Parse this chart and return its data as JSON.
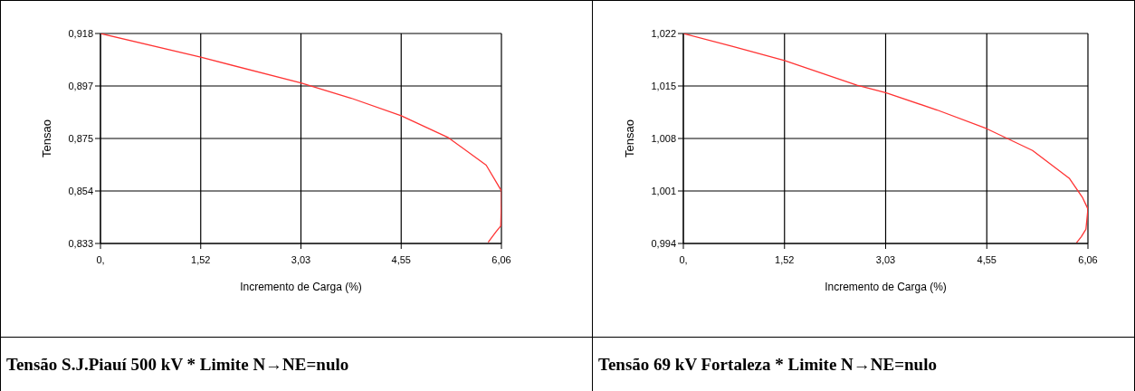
{
  "chart_data": [
    {
      "type": "line",
      "title": "Tensão S.J.Piauí 500 kV * Limite N→NE=nulo",
      "xlabel": "Incremento de Carga (%)",
      "ylabel": "Tensao",
      "xlim": [
        0,
        6.06
      ],
      "xticks": [
        {
          "value": 0,
          "label": "0,"
        },
        {
          "value": 1.515,
          "label": "1,52"
        },
        {
          "value": 3.03,
          "label": "3,03"
        },
        {
          "value": 4.545,
          "label": "4,55"
        },
        {
          "value": 6.06,
          "label": "6,06"
        }
      ],
      "ylim": [
        0.833,
        0.918
      ],
      "yticks": [
        {
          "value": 0.833,
          "label": "0,833"
        },
        {
          "value": 0.85425,
          "label": "0,854"
        },
        {
          "value": 0.8755,
          "label": "0,875"
        },
        {
          "value": 0.89675,
          "label": "0,897"
        },
        {
          "value": 0.918,
          "label": "0,918"
        }
      ],
      "grid": true,
      "marker": "none",
      "series": [
        {
          "color": "#ff3333",
          "x": [
            0,
            1.515,
            3.03,
            3.79,
            4.545,
            5.26,
            5.83,
            6.06,
            6.06,
            6.05,
            5.98,
            5.86
          ],
          "values": [
            0.918,
            0.9084,
            0.898,
            0.8918,
            0.8847,
            0.8758,
            0.8647,
            0.8543,
            0.8502,
            0.8401,
            0.8378,
            0.8335
          ]
        }
      ]
    },
    {
      "type": "line",
      "title": "Tensão 69 kV Fortaleza * Limite N→NE=nulo",
      "xlabel": "Incremento de Carga (%)",
      "ylabel": "Tensao",
      "xlim": [
        0,
        6.06
      ],
      "xticks": [
        {
          "value": 0,
          "label": "0,"
        },
        {
          "value": 1.515,
          "label": "1,52"
        },
        {
          "value": 3.03,
          "label": "3,03"
        },
        {
          "value": 4.545,
          "label": "4,55"
        },
        {
          "value": 6.06,
          "label": "6,06"
        }
      ],
      "ylim": [
        0.994,
        1.022
      ],
      "yticks": [
        {
          "value": 0.994,
          "label": "0,994"
        },
        {
          "value": 1.001,
          "label": "1,001"
        },
        {
          "value": 1.008,
          "label": "1,008"
        },
        {
          "value": 1.015,
          "label": "1,015"
        },
        {
          "value": 1.022,
          "label": "1,022"
        }
      ],
      "grid": true,
      "marker": "none",
      "series": [
        {
          "color": "#ff3333",
          "x": [
            0,
            0.73,
            1.515,
            2.6,
            3.03,
            3.8,
            4.545,
            5.23,
            5.78,
            5.98,
            6.06,
            6.03,
            5.96,
            5.89
          ],
          "values": [
            1.022,
            1.0203,
            1.0184,
            1.0151,
            1.0141,
            1.0118,
            1.0093,
            1.0064,
            1.0027,
            1.0001,
            0.9986,
            0.9959,
            0.9949,
            0.9941
          ]
        }
      ]
    }
  ]
}
